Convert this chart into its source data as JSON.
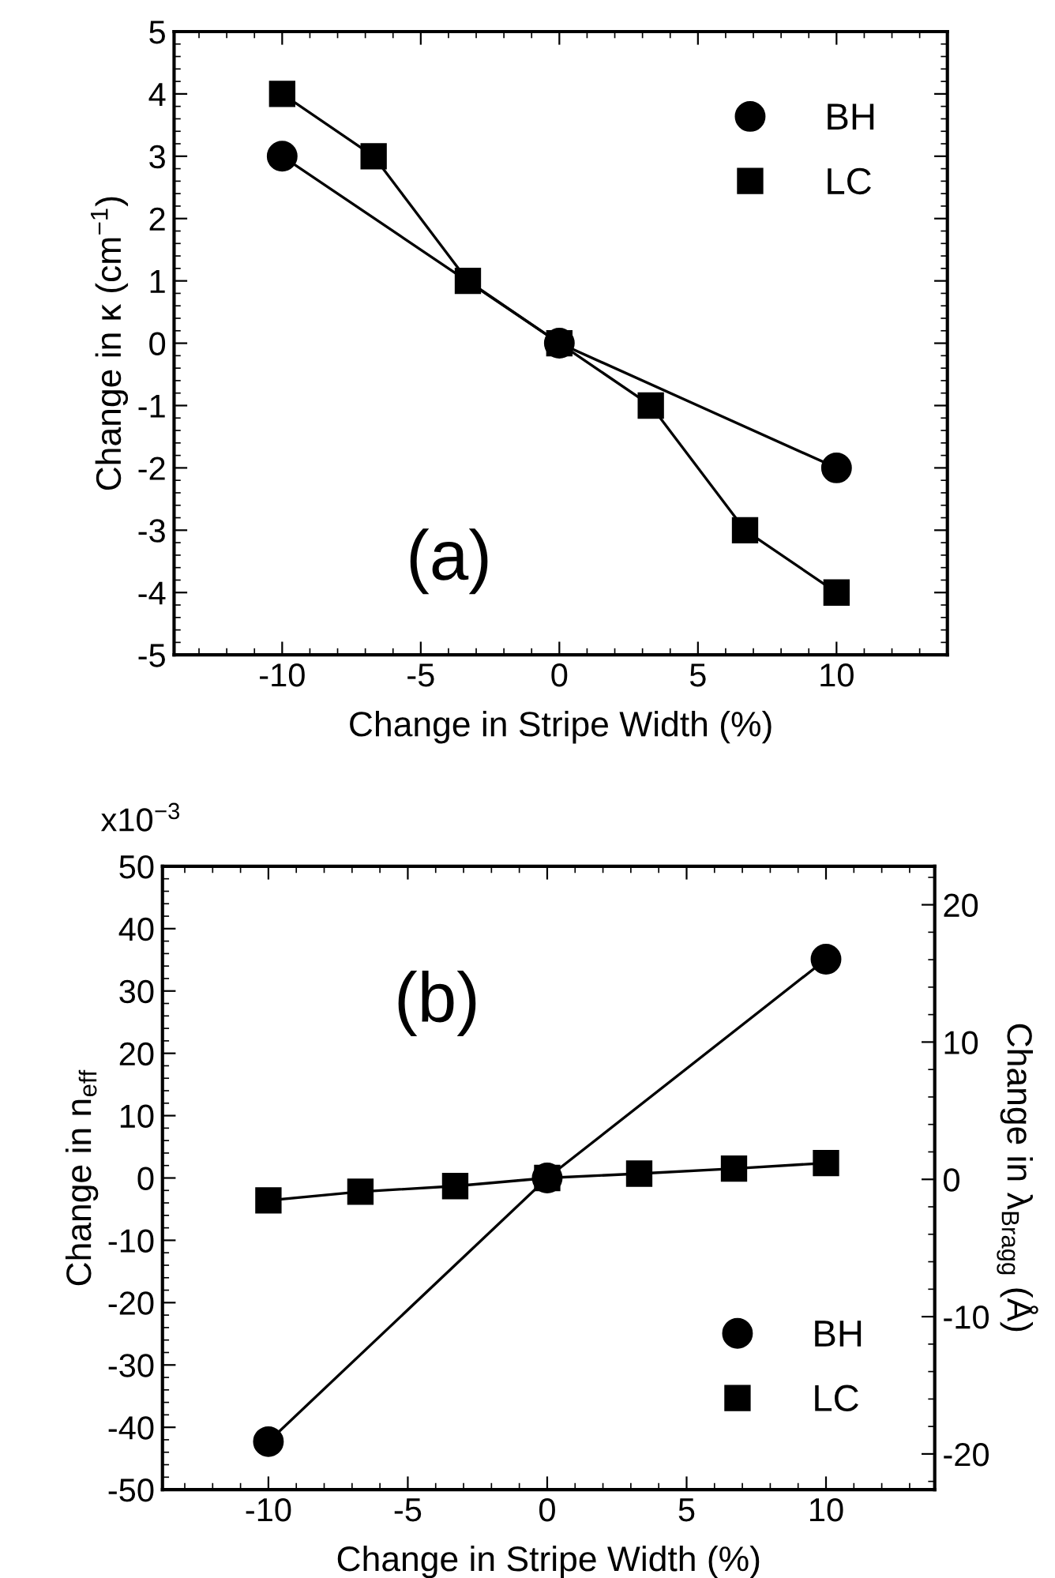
{
  "chart_data": [
    {
      "type": "line",
      "xlabel": "Change in Stripe Width (%)",
      "ylabel": "Change in κ (cm$^{−1}$)",
      "annotations": [
        "(a)"
      ],
      "xlim": [
        -13.9,
        14
      ],
      "xticks": [
        -10,
        -5,
        0,
        5,
        10
      ],
      "ylim": [
        -5,
        5
      ],
      "yticks": [
        -5,
        -4,
        -3,
        -2,
        -1,
        0,
        1,
        2,
        3,
        4,
        5
      ],
      "grid": false,
      "legend": "top right",
      "series": [
        {
          "name": "BH",
          "color": "#000000",
          "marker": "circle",
          "x": [
            -10,
            0,
            10
          ],
          "values": [
            3,
            0,
            -2
          ]
        },
        {
          "name": "LC",
          "color": "#000000",
          "marker": "square",
          "x": [
            -10,
            -6.7,
            -3.3,
            0,
            3.3,
            6.7,
            10
          ],
          "values": [
            4,
            3,
            1,
            0,
            -1,
            -3,
            -4
          ]
        }
      ]
    },
    {
      "type": "line",
      "xlabel": "Change in Stripe Width (%)",
      "ylabel": "Change in n$_{eff}$",
      "y2label": "Change in λ$_{Bragg}$ (Å)",
      "annotations": [
        "(b)",
        "x10$^{−3}$"
      ],
      "xlim": [
        -13.8,
        13.9
      ],
      "xticks": [
        -10,
        -5,
        0,
        5,
        10
      ],
      "ylim": [
        -50,
        50
      ],
      "yticks": [
        -50,
        -40,
        -30,
        -20,
        -10,
        0,
        10,
        20,
        30,
        40,
        50
      ],
      "y2lim": [
        -22.6,
        22.8
      ],
      "y2ticks": [
        -20,
        -10,
        0,
        10,
        20
      ],
      "grid": false,
      "legend": "bottom right",
      "series": [
        {
          "name": "BH",
          "color": "#000000",
          "marker": "circle",
          "x": [
            -10,
            0,
            10
          ],
          "values": [
            -42.3,
            0,
            35.1
          ]
        },
        {
          "name": "LC",
          "color": "#000000",
          "marker": "square",
          "x": [
            -10,
            -6.7,
            -3.3,
            0,
            3.3,
            6.7,
            10
          ],
          "values": [
            -3.6,
            -2.2,
            -1.3,
            0,
            0.7,
            1.5,
            2.4
          ]
        }
      ]
    }
  ]
}
